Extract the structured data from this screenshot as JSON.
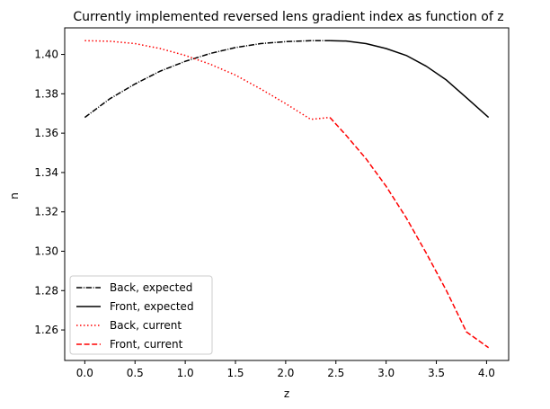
{
  "chart_data": {
    "type": "line",
    "title": "Currently implemented reversed lens gradient index as function of z",
    "xlabel": "z",
    "ylabel": "n",
    "xlim": [
      -0.2,
      4.22
    ],
    "ylim": [
      1.2445,
      1.4135
    ],
    "xticks": [
      "0.0",
      "0.5",
      "1.0",
      "1.5",
      "2.0",
      "2.5",
      "3.0",
      "3.5",
      "4.0"
    ],
    "xtick_values": [
      0,
      0.5,
      1.0,
      1.5,
      2.0,
      2.5,
      3.0,
      3.5,
      4.0
    ],
    "yticks": [
      "1.26",
      "1.28",
      "1.30",
      "1.32",
      "1.34",
      "1.36",
      "1.38",
      "1.40"
    ],
    "ytick_values": [
      1.26,
      1.28,
      1.3,
      1.32,
      1.34,
      1.36,
      1.38,
      1.4
    ],
    "grid": false,
    "legend_position": "lower-left",
    "series": [
      {
        "name": "Back, expected",
        "color": "#000000",
        "style": "dashdot",
        "x": [
          0.0,
          0.25,
          0.5,
          0.75,
          1.0,
          1.25,
          1.5,
          1.75,
          2.0,
          2.25,
          2.44
        ],
        "y": [
          1.368,
          1.3775,
          1.385,
          1.3915,
          1.3965,
          1.4005,
          1.4035,
          1.4055,
          1.4065,
          1.407,
          1.407
        ]
      },
      {
        "name": "Front, expected",
        "color": "#000000",
        "style": "solid",
        "x": [
          2.44,
          2.6,
          2.8,
          3.0,
          3.2,
          3.4,
          3.6,
          3.8,
          4.02
        ],
        "y": [
          1.407,
          1.4068,
          1.4055,
          1.403,
          1.3995,
          1.394,
          1.387,
          1.378,
          1.368
        ]
      },
      {
        "name": "Back, current",
        "color": "#ff0000",
        "style": "dotted",
        "x": [
          0.0,
          0.25,
          0.5,
          0.75,
          1.0,
          1.25,
          1.5,
          1.75,
          2.0,
          2.25,
          2.44
        ],
        "y": [
          1.407,
          1.4067,
          1.4055,
          1.403,
          1.3995,
          1.395,
          1.3895,
          1.3825,
          1.375,
          1.367,
          1.368
        ]
      },
      {
        "name": "Front, current",
        "color": "#ff0000",
        "style": "dashed",
        "x": [
          2.44,
          2.6,
          2.8,
          3.0,
          3.2,
          3.4,
          3.6,
          3.8,
          4.02
        ],
        "y": [
          1.368,
          1.359,
          1.347,
          1.333,
          1.317,
          1.299,
          1.28,
          1.259,
          1.251
        ]
      }
    ]
  }
}
